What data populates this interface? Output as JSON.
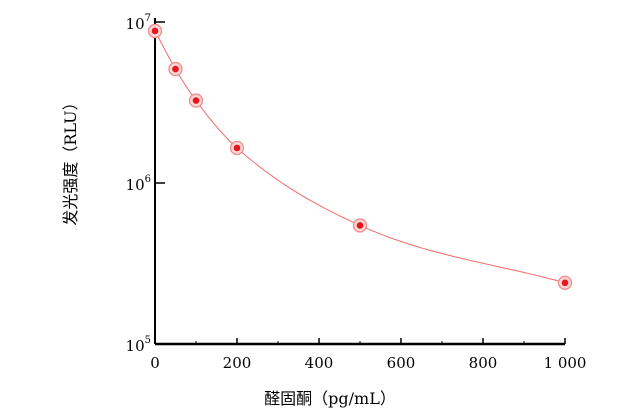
{
  "chart_data": {
    "type": "scatter",
    "xlabel": "醛固酮（pg/mL）",
    "ylabel": "发光强度（RLU）",
    "xlim": [
      0,
      1000
    ],
    "ylim": [
      100000,
      10000000
    ],
    "yscale": "log",
    "x_ticks": [
      0,
      200,
      400,
      600,
      800,
      1000
    ],
    "x_tick_labels": [
      "0",
      "200",
      "400",
      "600",
      "800",
      "1 000"
    ],
    "y_ticks": [
      {
        "value": 100000,
        "base": "10",
        "exp": "5"
      },
      {
        "value": 1000000,
        "base": "10",
        "exp": "6"
      },
      {
        "value": 10000000,
        "base": "10",
        "exp": "7"
      }
    ],
    "grid": false,
    "series": [
      {
        "x": [
          0,
          50,
          100,
          200,
          500,
          1000
        ],
        "y": [
          8800000,
          5100000,
          3250000,
          1650000,
          545000,
          240000
        ],
        "fit_line": true
      }
    ],
    "colors": {
      "point_fill": "#e8141e",
      "point_ring": "#f08c8c",
      "curve": "#f06a6a",
      "axis": "#000000"
    }
  }
}
